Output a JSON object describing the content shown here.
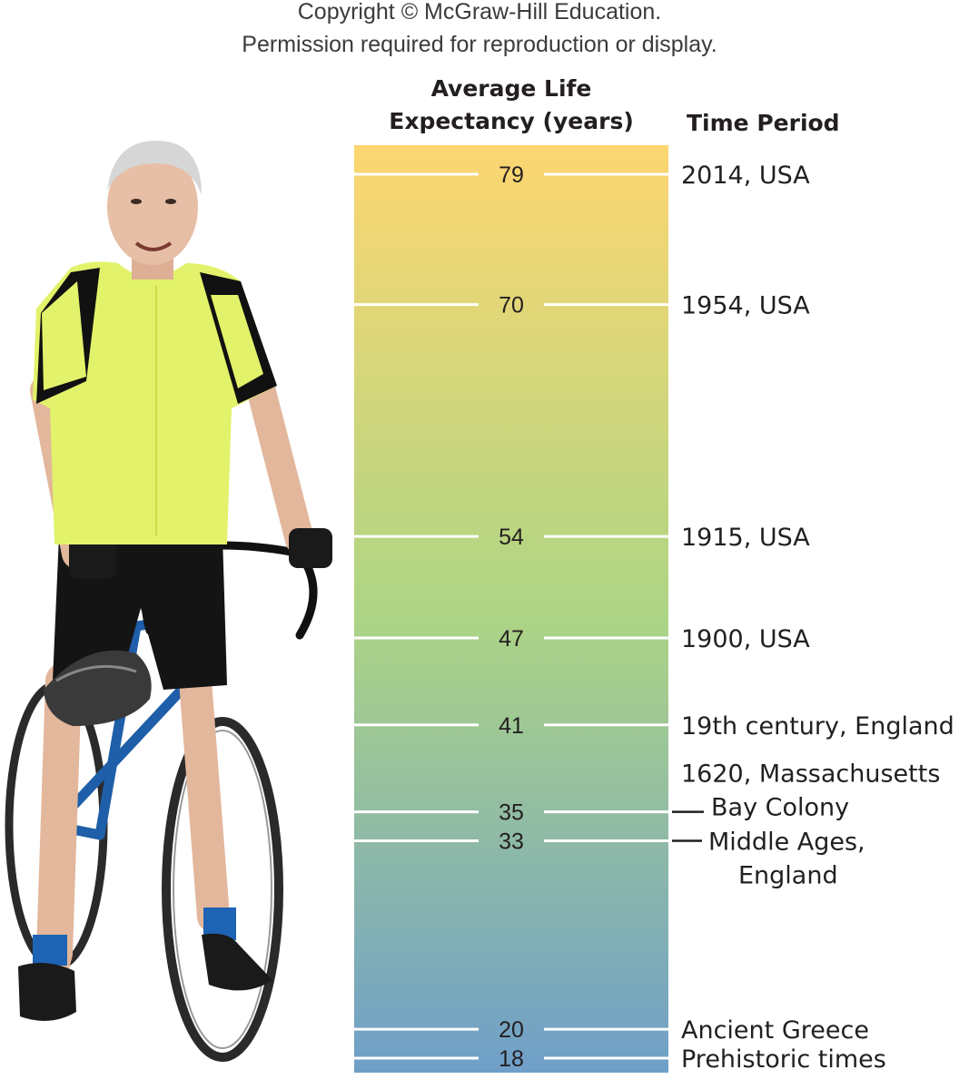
{
  "copyright": {
    "line1": "Copyright © McGraw-Hill Education.",
    "line2": "Permission required for reproduction or display."
  },
  "chart_data": {
    "type": "bar",
    "headers": {
      "value_column": [
        "Average Life",
        "Expectancy (years)"
      ],
      "label_column": "Time Period"
    },
    "ylim": [
      17,
      81
    ],
    "gradient": {
      "top": "#fdd671",
      "middle": "#aed584",
      "bottom": "#6f9fc9"
    },
    "entries": [
      {
        "value": 79,
        "period": [
          "2014, USA"
        ]
      },
      {
        "value": 70,
        "period": [
          "1954, USA"
        ]
      },
      {
        "value": 54,
        "period": [
          "1915, USA"
        ]
      },
      {
        "value": 47,
        "period": [
          "1900, USA"
        ]
      },
      {
        "value": 41,
        "period": [
          "19th century, England"
        ]
      },
      {
        "value": 35,
        "period": [
          "1620, Massachusetts",
          "Bay Colony"
        ]
      },
      {
        "value": 33,
        "period": [
          "Middle Ages,",
          "England"
        ]
      },
      {
        "value": 20,
        "period": [
          "Ancient Greece"
        ]
      },
      {
        "value": 18,
        "period": [
          "Prehistoric times"
        ]
      }
    ]
  },
  "photo": {
    "subject": "older-man-with-road-bicycle"
  }
}
